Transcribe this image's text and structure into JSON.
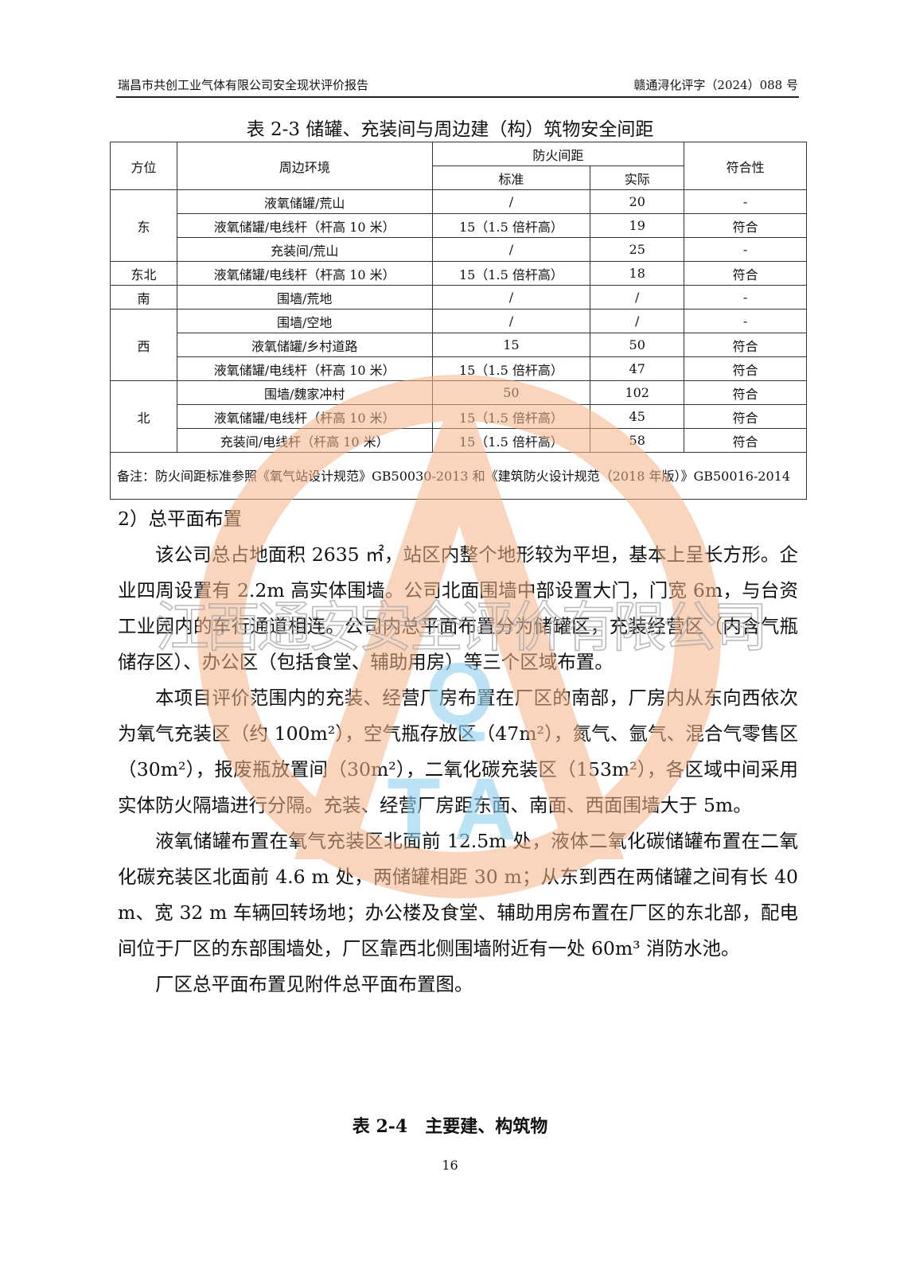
{
  "header": {
    "left": "瑞昌市共创工业气体有限公司安全现状评价报告",
    "right": "赣通浔化评字（2024）088 号"
  },
  "table_title": "表 2-3 储罐、充装间与周边建（构）筑物安全间距",
  "table": {
    "headers": {
      "direction": "方位",
      "environment": "周边环境",
      "fire_distance": "防火间距",
      "standard": "标准",
      "actual": "实际",
      "compliance": "符合性"
    },
    "groups": [
      {
        "direction": "东",
        "rows": [
          [
            "液氧储罐/荒山",
            "/",
            "20",
            "-"
          ],
          [
            "液氧储罐/电线杆（杆高 10 米）",
            "15（1.5 倍杆高）",
            "19",
            "符合"
          ],
          [
            "充装间/荒山",
            "/",
            "25",
            "-"
          ]
        ]
      },
      {
        "direction": "东北",
        "rows": [
          [
            "液氧储罐/电线杆（杆高 10 米）",
            "15（1.5 倍杆高）",
            "18",
            "符合"
          ]
        ]
      },
      {
        "direction": "南",
        "rows": [
          [
            "围墙/荒地",
            "/",
            "/",
            "-"
          ]
        ]
      },
      {
        "direction": "西",
        "rows": [
          [
            "围墙/空地",
            "/",
            "/",
            "-"
          ],
          [
            "液氧储罐/乡村道路",
            "15",
            "50",
            "符合"
          ],
          [
            "液氧储罐/电线杆（杆高 10 米）",
            "15（1.5 倍杆高）",
            "47",
            "符合"
          ]
        ]
      },
      {
        "direction": "北",
        "rows": [
          [
            "围墙/魏家冲村",
            "50",
            "102",
            "符合"
          ],
          [
            "液氧储罐/电线杆（杆高 10 米）",
            "15（1.5 倍杆高）",
            "45",
            "符合"
          ],
          [
            "充装间/电线杆（杆高 10 米）",
            "15（1.5 倍杆高）",
            "58",
            "符合"
          ]
        ]
      }
    ],
    "note": "备注：防火间距标准参照《氧气站设计规范》GB50030-2013 和《建筑防火设计规范（2018 年版）》GB50016-2014"
  },
  "section_title": "2）总平面布置",
  "paragraphs": [
    "该公司总占地面积 2635 ㎡，站区内整个地形较为平坦，基本上呈长方形。企业四周设置有 2.2m 高实体围墙。公司北面围墙中部设置大门，门宽 6m，与台资工业园内的车行通道相连。公司内总平面布置分为储罐区，充装经营区（内含气瓶储存区）、办公区（包括食堂、辅助用房）等三个区域布置。",
    "本项目评价范围内的充装、经营厂房布置在厂区的南部，厂房内从东向西依次为氧气充装区（约 100m²），空气瓶存放区（47m²），氮气、氩气、混合气零售区（30m²），报废瓶放置间（30m²），二氧化碳充装区（153m²），各区域中间采用实体防火隔墙进行分隔。充装、经营厂房距东面、南面、西面围墙大于 5m。",
    "液氧储罐布置在氧气充装区北面前 12.5m 处，液体二氧化碳储罐布置在二氧化碳充装区北面前 4.6 m 处，两储罐相距 30 m；从东到西在两储罐之间有长 40 m、宽 32 m 车辆回转场地；办公楼及食堂、辅助用房布置在厂区的东北部，配电间位于厂区的东部围墙处，厂区靠西北侧围墙附近有一处 60m³ 消防水池。",
    "厂区总平面布置见附件总平面布置图。"
  ],
  "next_table_title": "表 2-4　主要建、构筑物",
  "page_number": "16",
  "watermark": {
    "text": "江西通安安全评价有限公司",
    "logo_letters": "QTA",
    "ring_color": "#f6b48a",
    "letter_color": "#8fd0f0"
  }
}
